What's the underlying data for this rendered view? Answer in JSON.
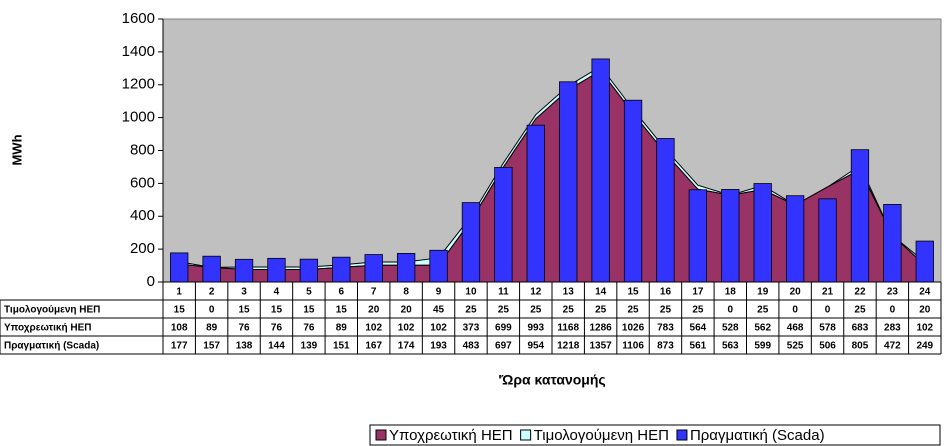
{
  "chart_data": {
    "type": "combo",
    "y_label": "MWh",
    "x_label": "'Ώρα κατανομής",
    "categories": [
      "1",
      "2",
      "3",
      "4",
      "5",
      "6",
      "7",
      "8",
      "9",
      "10",
      "11",
      "12",
      "13",
      "14",
      "15",
      "16",
      "17",
      "18",
      "19",
      "20",
      "21",
      "22",
      "23",
      "24"
    ],
    "series": [
      {
        "name": "Υποχρεωτική ΗΕΠ",
        "type": "area",
        "color": "#993366",
        "values": [
          108,
          89,
          76,
          76,
          76,
          89,
          102,
          102,
          102,
          373,
          699,
          993,
          1168,
          1286,
          1026,
          783,
          564,
          528,
          562,
          468,
          578,
          683,
          283,
          102
        ]
      },
      {
        "name": "Τιμολογούμενη ΗΕΠ",
        "type": "area",
        "stacked": true,
        "color": "#ccffff",
        "values": [
          15,
          0,
          15,
          15,
          15,
          15,
          20,
          20,
          45,
          25,
          25,
          25,
          25,
          25,
          25,
          25,
          25,
          0,
          25,
          0,
          0,
          25,
          0,
          20
        ]
      },
      {
        "name": "Πραγματική (Scada)",
        "type": "bar",
        "color": "#3333ff",
        "values": [
          177,
          157,
          138,
          144,
          139,
          151,
          167,
          174,
          193,
          483,
          697,
          954,
          1218,
          1357,
          1106,
          873,
          561,
          563,
          599,
          525,
          506,
          805,
          472,
          249
        ]
      }
    ],
    "ylim": [
      0,
      1600
    ],
    "yticks": [
      0,
      200,
      400,
      600,
      800,
      1000,
      1200,
      1400,
      1600
    ],
    "grid": false,
    "legend": "bottom",
    "plot_background": "#c0c0c0"
  }
}
